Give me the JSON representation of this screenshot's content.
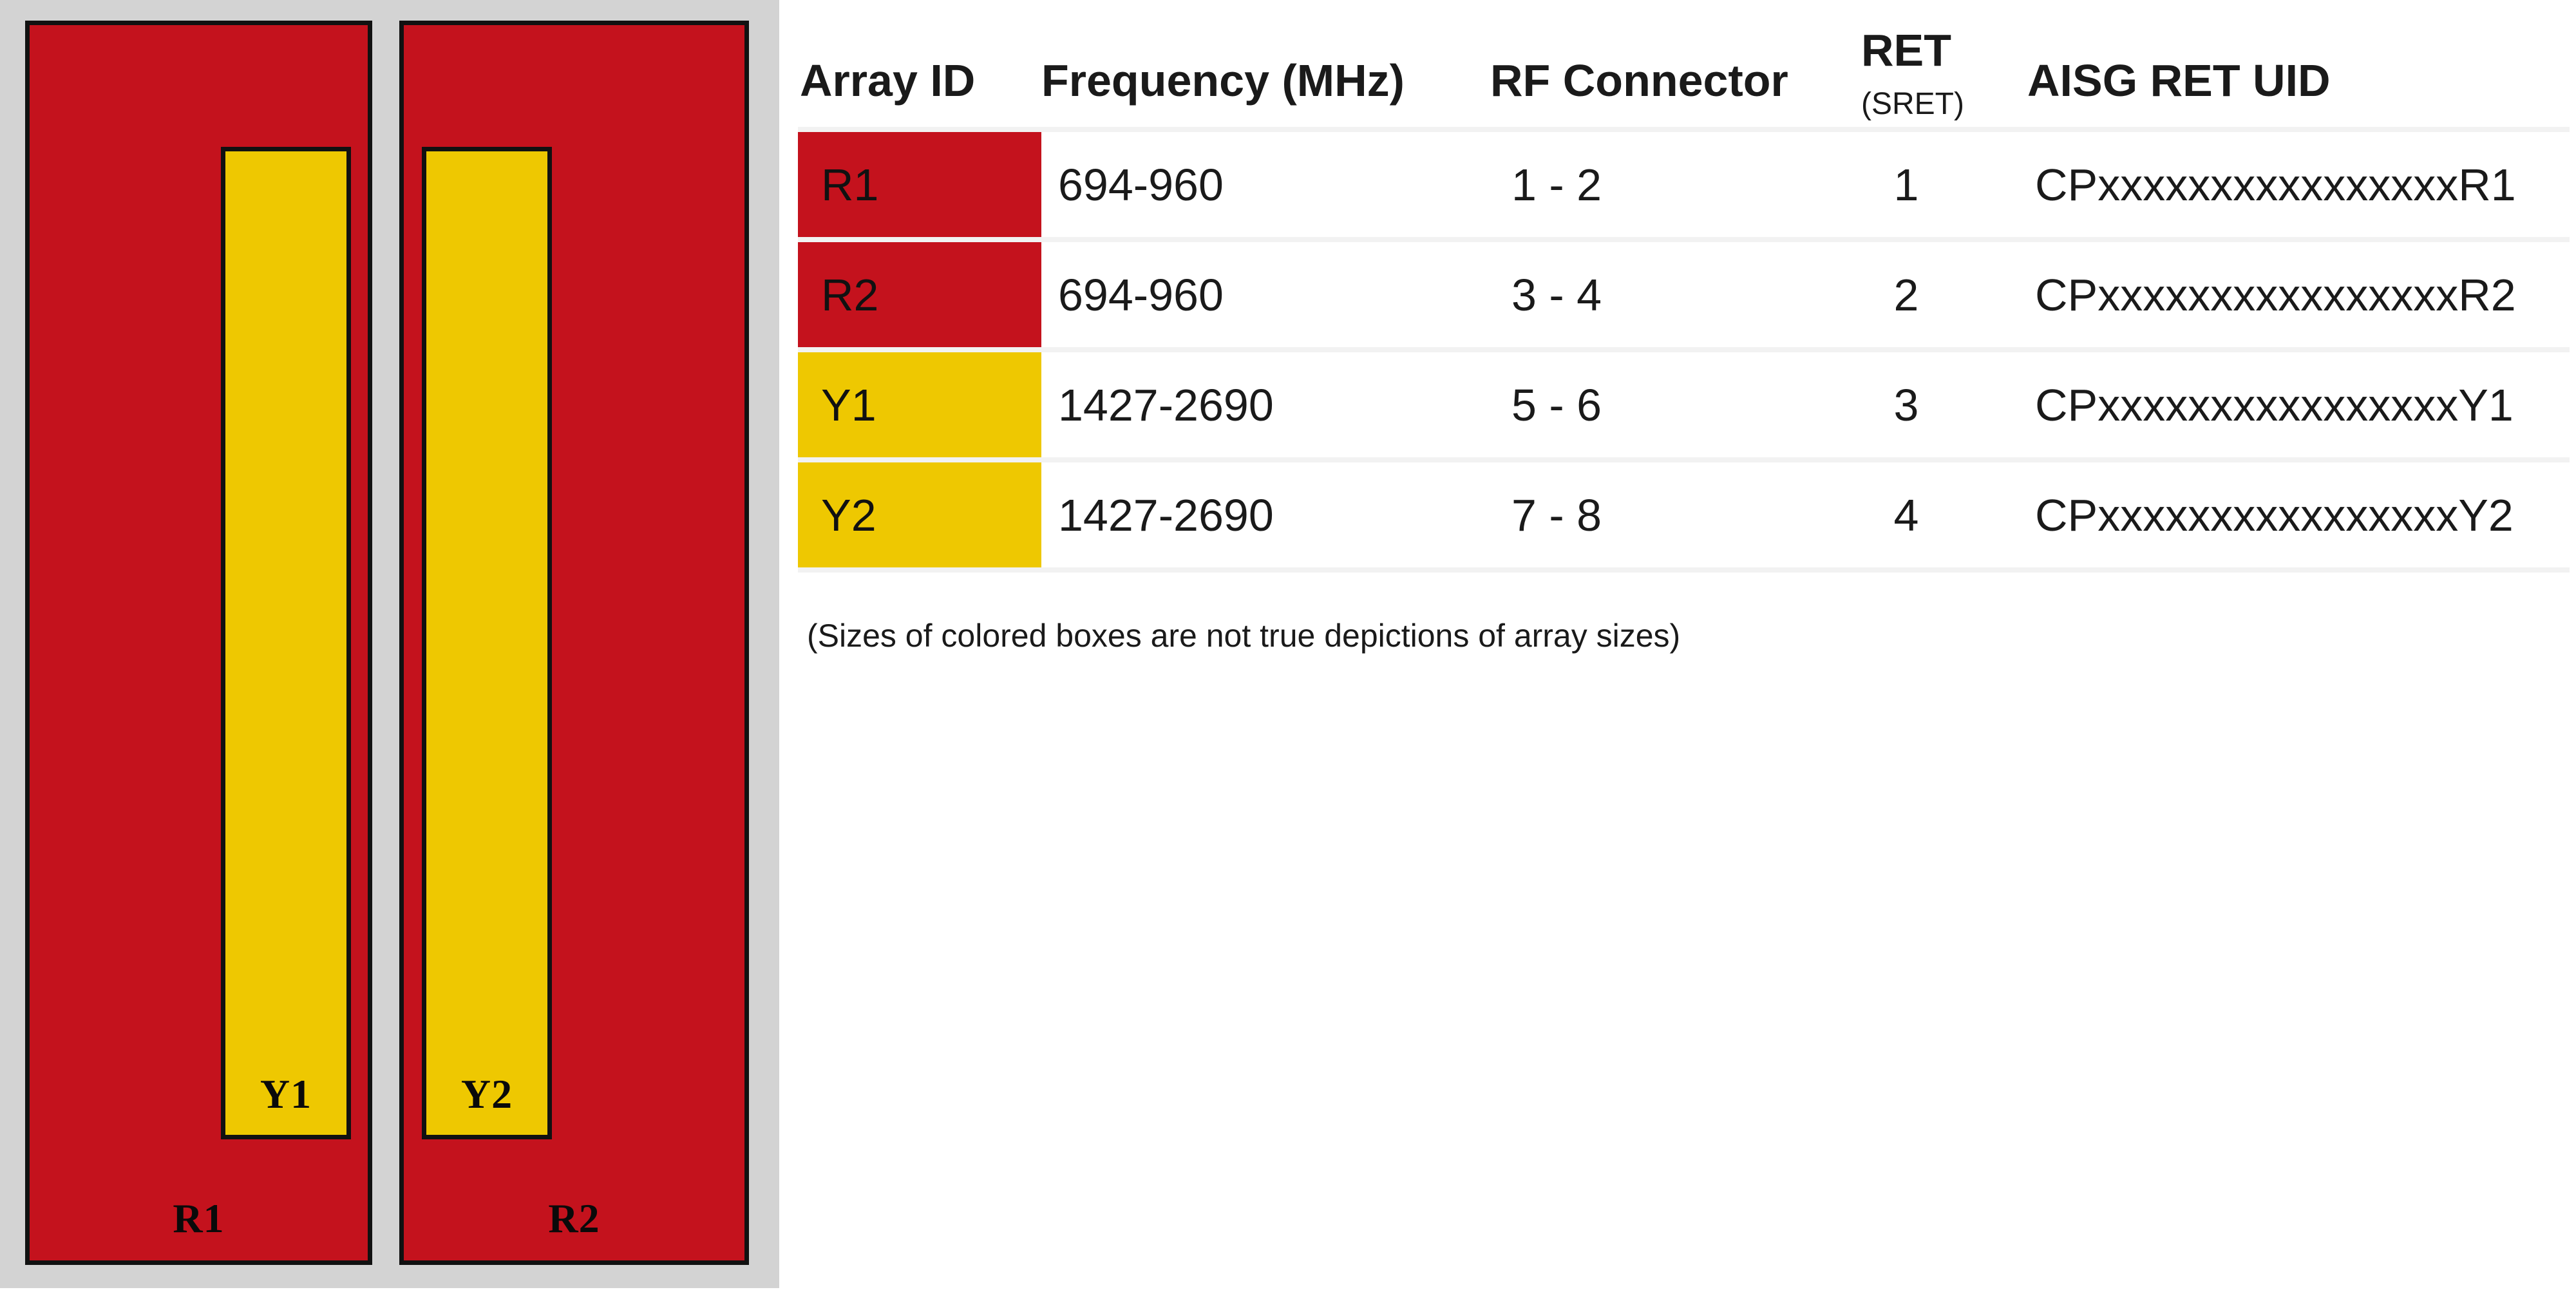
{
  "colors": {
    "red": "#c4121d",
    "yellow": "#eec801",
    "panel_gray": "#d3d3d3",
    "separator": "#f2f2f2",
    "border_black": "#111111"
  },
  "panel": {
    "arrays": [
      {
        "label": "R1",
        "color": "red",
        "sub": {
          "label": "Y1",
          "color": "yellow"
        }
      },
      {
        "label": "R2",
        "color": "red",
        "sub": {
          "label": "Y2",
          "color": "yellow"
        }
      }
    ]
  },
  "table": {
    "headers": {
      "array_id": "Array ID",
      "frequency": "Frequency (MHz)",
      "rf_connector": "RF Connector",
      "ret": "RET",
      "ret_sub": "(SRET)",
      "aisg_ret_uid": "AISG RET UID"
    },
    "rows": [
      {
        "array_id": "R1",
        "color": "red",
        "frequency": "694-960",
        "rf_connector": "1 - 2",
        "ret": "1",
        "aisg_ret_uid": "CPxxxxxxxxxxxxxxxxR1"
      },
      {
        "array_id": "R2",
        "color": "red",
        "frequency": "694-960",
        "rf_connector": "3 - 4",
        "ret": "2",
        "aisg_ret_uid": "CPxxxxxxxxxxxxxxxxR2"
      },
      {
        "array_id": "Y1",
        "color": "yellow",
        "frequency": "1427-2690",
        "rf_connector": "5 - 6",
        "ret": "3",
        "aisg_ret_uid": "CPxxxxxxxxxxxxxxxxY1"
      },
      {
        "array_id": "Y2",
        "color": "yellow",
        "frequency": "1427-2690",
        "rf_connector": "7 - 8",
        "ret": "4",
        "aisg_ret_uid": "CPxxxxxxxxxxxxxxxxY2"
      }
    ],
    "note": "(Sizes of colored boxes are not true depictions of array sizes)"
  }
}
